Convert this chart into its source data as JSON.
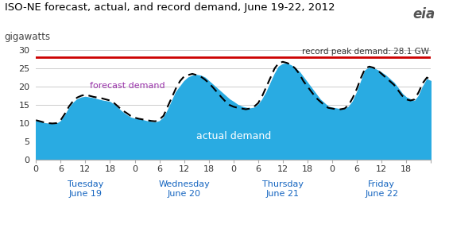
{
  "title": "ISO-NE forecast, actual, and record demand, June 19-22, 2012",
  "ylabel": "gigawatts",
  "record_demand": 28.1,
  "record_label": "record peak demand: 28.1 GW",
  "actual_label": "actual demand",
  "forecast_label": "forecast demand",
  "actual_color": "#29ABE2",
  "forecast_color": "#000000",
  "record_color": "#CC0000",
  "forecast_label_color": "#9933AA",
  "actual_label_color": "#FFFFFF",
  "background_color": "#FFFFFF",
  "ylim": [
    0,
    30
  ],
  "yticks": [
    0,
    5,
    10,
    15,
    20,
    25,
    30
  ],
  "xlim": [
    0,
    96
  ],
  "actual_x": [
    0,
    1,
    2,
    3,
    4,
    5,
    6,
    7,
    8,
    9,
    10,
    11,
    12,
    13,
    14,
    15,
    16,
    17,
    18,
    19,
    20,
    21,
    22,
    23,
    24,
    25,
    26,
    27,
    28,
    29,
    30,
    31,
    32,
    33,
    34,
    35,
    36,
    37,
    38,
    39,
    40,
    41,
    42,
    43,
    44,
    45,
    46,
    47,
    48,
    49,
    50,
    51,
    52,
    53,
    54,
    55,
    56,
    57,
    58,
    59,
    60,
    61,
    62,
    63,
    64,
    65,
    66,
    67,
    68,
    69,
    70,
    71,
    72,
    73,
    74,
    75,
    76,
    77,
    78,
    79,
    80,
    81,
    82,
    83,
    84,
    85,
    86,
    87,
    88,
    89,
    90,
    91,
    92,
    93,
    94,
    95,
    96
  ],
  "actual_y": [
    10.5,
    10.3,
    10.0,
    9.8,
    9.7,
    9.8,
    10.5,
    12.0,
    14.0,
    15.5,
    16.5,
    17.0,
    17.2,
    17.0,
    16.8,
    16.5,
    16.2,
    16.0,
    15.8,
    15.0,
    14.0,
    13.0,
    12.2,
    11.5,
    11.2,
    11.0,
    10.8,
    10.5,
    10.3,
    10.2,
    10.5,
    11.5,
    13.5,
    16.0,
    18.5,
    20.0,
    21.5,
    22.5,
    23.0,
    23.2,
    23.0,
    22.5,
    21.5,
    20.5,
    19.5,
    18.5,
    17.5,
    16.5,
    15.8,
    15.0,
    14.5,
    14.2,
    14.0,
    14.2,
    15.0,
    16.5,
    18.5,
    21.0,
    23.5,
    25.5,
    26.2,
    26.3,
    25.8,
    25.0,
    24.0,
    22.5,
    21.0,
    19.5,
    18.0,
    16.5,
    15.5,
    14.5,
    14.2,
    14.0,
    13.8,
    13.8,
    14.5,
    16.0,
    18.5,
    21.5,
    24.5,
    25.2,
    25.0,
    24.5,
    23.8,
    23.0,
    22.0,
    21.0,
    19.5,
    18.0,
    17.0,
    16.5,
    16.0,
    17.5,
    20.0,
    22.0,
    21.5
  ],
  "forecast_x": [
    0,
    1,
    2,
    3,
    4,
    5,
    6,
    7,
    8,
    9,
    10,
    11,
    12,
    13,
    14,
    15,
    16,
    17,
    18,
    19,
    20,
    21,
    22,
    23,
    24,
    25,
    26,
    27,
    28,
    29,
    30,
    31,
    32,
    33,
    34,
    35,
    36,
    37,
    38,
    39,
    40,
    41,
    42,
    43,
    44,
    45,
    46,
    47,
    48,
    49,
    50,
    51,
    52,
    53,
    54,
    55,
    56,
    57,
    58,
    59,
    60,
    61,
    62,
    63,
    64,
    65,
    66,
    67,
    68,
    69,
    70,
    71,
    72,
    73,
    74,
    75,
    76,
    77,
    78,
    79,
    80,
    81,
    82,
    83,
    84,
    85,
    86,
    87,
    88,
    89,
    90,
    91,
    92,
    93,
    94,
    95,
    96
  ],
  "forecast_y": [
    10.8,
    10.5,
    10.2,
    10.0,
    9.9,
    10.0,
    10.8,
    12.5,
    14.5,
    16.0,
    17.0,
    17.5,
    17.8,
    17.5,
    17.2,
    17.0,
    16.8,
    16.5,
    16.2,
    15.5,
    14.5,
    13.5,
    12.8,
    12.0,
    11.5,
    11.2,
    11.0,
    10.8,
    10.6,
    10.5,
    11.0,
    12.0,
    14.5,
    17.0,
    19.5,
    21.5,
    22.8,
    23.2,
    23.5,
    23.2,
    22.8,
    22.0,
    21.0,
    19.8,
    18.5,
    17.2,
    16.0,
    15.0,
    14.5,
    14.2,
    14.0,
    13.8,
    14.0,
    14.5,
    15.5,
    17.5,
    20.0,
    22.5,
    25.0,
    26.5,
    26.8,
    26.5,
    26.0,
    25.0,
    23.5,
    21.5,
    20.0,
    18.5,
    17.0,
    16.0,
    15.0,
    14.2,
    14.0,
    13.8,
    13.8,
    14.0,
    15.0,
    17.0,
    19.5,
    22.5,
    25.0,
    25.5,
    25.2,
    24.5,
    23.5,
    22.5,
    21.5,
    20.5,
    19.0,
    17.5,
    16.5,
    16.2,
    16.5,
    18.5,
    21.0,
    22.5,
    21.8
  ],
  "xtick_positions": [
    0,
    6,
    12,
    18,
    24,
    30,
    36,
    42,
    48,
    54,
    60,
    66,
    72,
    78,
    84,
    90,
    96
  ],
  "xtick_labels": [
    "0",
    "6",
    "12",
    "18",
    "0",
    "6",
    "12",
    "18",
    "0",
    "6",
    "12",
    "18",
    "0",
    "6",
    "12",
    "18",
    ""
  ],
  "day_labels": [
    {
      "x": 12,
      "line1": "Tuesday",
      "line2": "June 19"
    },
    {
      "x": 36,
      "line1": "Wednesday",
      "line2": "June 20"
    },
    {
      "x": 60,
      "line1": "Thursday",
      "line2": "June 21"
    },
    {
      "x": 84,
      "line1": "Friday",
      "line2": "June 22"
    }
  ],
  "day_label_color": "#1565C0",
  "title_color": "#000000",
  "ylabel_color": "#444444",
  "tick_label_color": "#333333",
  "grid_color": "#CCCCCC"
}
